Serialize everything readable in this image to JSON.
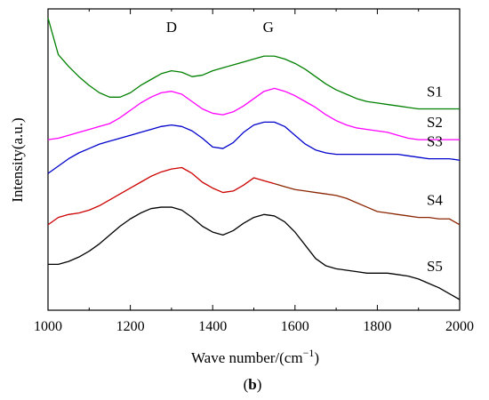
{
  "chart_data": {
    "type": "line",
    "xlabel": "Wave number/(cm",
    "xlabel_sup": "−1",
    "xlabel_close": ")",
    "ylabel": "Intensity(a.u.)",
    "xlim": [
      1000,
      2000
    ],
    "y_ticks_shown": false,
    "x_ticks": [
      1000,
      1200,
      1400,
      1600,
      1800,
      2000
    ],
    "grid": false,
    "annotations": [
      {
        "text": "D",
        "x": 1300
      },
      {
        "text": "G",
        "x": 1535
      }
    ],
    "caption_open": "(",
    "caption_bold": "b",
    "caption_close": ")",
    "x": [
      1000,
      1025,
      1050,
      1075,
      1100,
      1125,
      1150,
      1175,
      1200,
      1225,
      1250,
      1275,
      1300,
      1325,
      1350,
      1375,
      1400,
      1425,
      1450,
      1475,
      1500,
      1525,
      1550,
      1575,
      1600,
      1625,
      1650,
      1675,
      1700,
      1725,
      1750,
      1775,
      1800,
      1825,
      1850,
      1875,
      1900,
      1925,
      1950,
      1975,
      2000
    ],
    "series": [
      {
        "name": "S1",
        "color": "#008000",
        "values": [
          9.6,
          8.35,
          7.95,
          7.6,
          7.3,
          7.05,
          6.9,
          6.9,
          7.05,
          7.3,
          7.5,
          7.7,
          7.8,
          7.75,
          7.6,
          7.65,
          7.8,
          7.9,
          8.0,
          8.1,
          8.2,
          8.3,
          8.3,
          8.2,
          8.05,
          7.85,
          7.6,
          7.35,
          7.15,
          7.0,
          6.85,
          6.75,
          6.7,
          6.65,
          6.6,
          6.55,
          6.5,
          6.5,
          6.5,
          6.5,
          6.5
        ]
      },
      {
        "name": "S2",
        "color": "#ff00ff",
        "values": [
          5.45,
          5.5,
          5.6,
          5.7,
          5.8,
          5.9,
          6.0,
          6.2,
          6.45,
          6.7,
          6.9,
          7.05,
          7.1,
          7.0,
          6.75,
          6.5,
          6.35,
          6.3,
          6.4,
          6.6,
          6.85,
          7.1,
          7.2,
          7.1,
          6.95,
          6.75,
          6.55,
          6.3,
          6.1,
          5.95,
          5.85,
          5.8,
          5.75,
          5.7,
          5.6,
          5.5,
          5.45,
          5.45,
          5.45,
          5.45,
          5.45
        ]
      },
      {
        "name": "S3",
        "color": "#0000cc",
        "values": [
          4.3,
          4.55,
          4.8,
          5.0,
          5.15,
          5.3,
          5.4,
          5.5,
          5.6,
          5.7,
          5.8,
          5.9,
          5.95,
          5.9,
          5.75,
          5.5,
          5.2,
          5.15,
          5.35,
          5.7,
          5.95,
          6.05,
          6.05,
          5.9,
          5.6,
          5.3,
          5.1,
          5.0,
          4.95,
          4.95,
          4.95,
          4.95,
          4.95,
          4.95,
          4.95,
          4.9,
          4.85,
          4.8,
          4.8,
          4.8,
          4.75
        ]
      },
      {
        "name": "S4",
        "color": "#cc0000",
        "values": [
          2.55,
          2.8,
          2.9,
          2.95,
          3.05,
          3.2,
          3.4,
          3.6,
          3.8,
          4.0,
          4.2,
          4.35,
          4.45,
          4.5,
          4.3,
          4.0,
          3.8,
          3.65,
          3.7,
          3.9,
          4.15,
          4.05,
          3.95,
          3.85,
          3.75,
          3.7,
          3.65,
          3.6,
          3.55,
          3.45,
          3.3,
          3.15,
          3.0,
          2.95,
          2.9,
          2.85,
          2.8,
          2.8,
          2.75,
          2.75,
          2.55
        ],
        "tail_color": "#8b2500",
        "tail_from": 1550
      },
      {
        "name": "S5",
        "color": "#000000",
        "values": [
          1.2,
          1.2,
          1.3,
          1.45,
          1.65,
          1.9,
          2.2,
          2.5,
          2.75,
          2.95,
          3.1,
          3.15,
          3.15,
          3.05,
          2.8,
          2.5,
          2.3,
          2.2,
          2.35,
          2.6,
          2.8,
          2.9,
          2.85,
          2.65,
          2.3,
          1.85,
          1.4,
          1.15,
          1.05,
          1.0,
          0.95,
          0.9,
          0.9,
          0.9,
          0.85,
          0.8,
          0.7,
          0.55,
          0.4,
          0.2,
          0.0
        ]
      }
    ]
  }
}
